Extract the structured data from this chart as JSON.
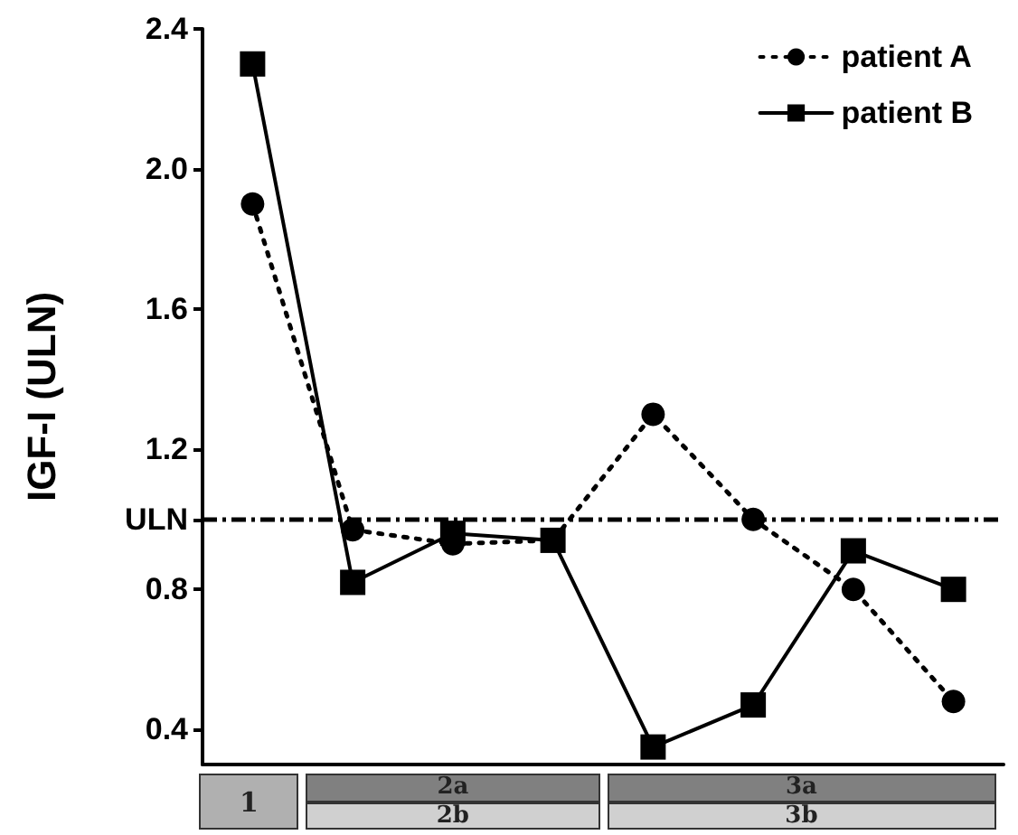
{
  "chart_data": {
    "type": "line",
    "ylabel": "IGF-I (ULN)",
    "categories": [
      null,
      null,
      null,
      null,
      null,
      null,
      null,
      null
    ],
    "series": [
      {
        "name": "patient A",
        "color": "#000000",
        "marker": "circle",
        "line_style": "dotted",
        "values": [
          1.9,
          0.97,
          0.93,
          0.94,
          1.3,
          1.0,
          0.8,
          0.48
        ]
      },
      {
        "name": "patient B",
        "color": "#000000",
        "marker": "square",
        "line_style": "solid",
        "values": [
          2.3,
          0.82,
          0.96,
          0.94,
          0.35,
          0.47,
          0.91,
          0.8
        ]
      }
    ],
    "ylim": [
      0.3,
      2.4
    ],
    "yticks": [
      0.4,
      0.8,
      {
        "value": 1,
        "label": "ULN"
      },
      1.2,
      1.6,
      {
        "value": 2,
        "label": "2.0"
      },
      2.4
    ],
    "ref_lines": [
      {
        "axis": "y",
        "value": 1,
        "line_style": "dashed",
        "color": "#000000"
      }
    ],
    "annotations": [
      "1",
      "2a",
      "2b",
      "3a",
      "3b"
    ],
    "legend": "top right",
    "grid": false
  }
}
